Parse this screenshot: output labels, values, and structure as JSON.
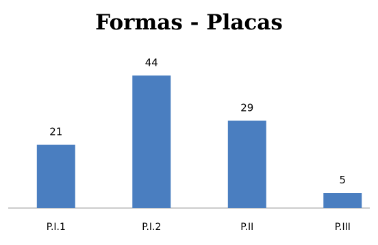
{
  "chart_data": {
    "type": "bar",
    "title": "Formas - Placas",
    "xlabel": "",
    "ylabel": "",
    "categories": [
      "P.I.1",
      "P.I.2",
      "P.II",
      "P.III"
    ],
    "values": [
      21,
      44,
      29,
      5
    ],
    "ylim": [
      0,
      50
    ],
    "grid": false,
    "legend": "none",
    "bar_color": "#4a7ec0",
    "axis_color": "#999999",
    "data_labels": true
  }
}
